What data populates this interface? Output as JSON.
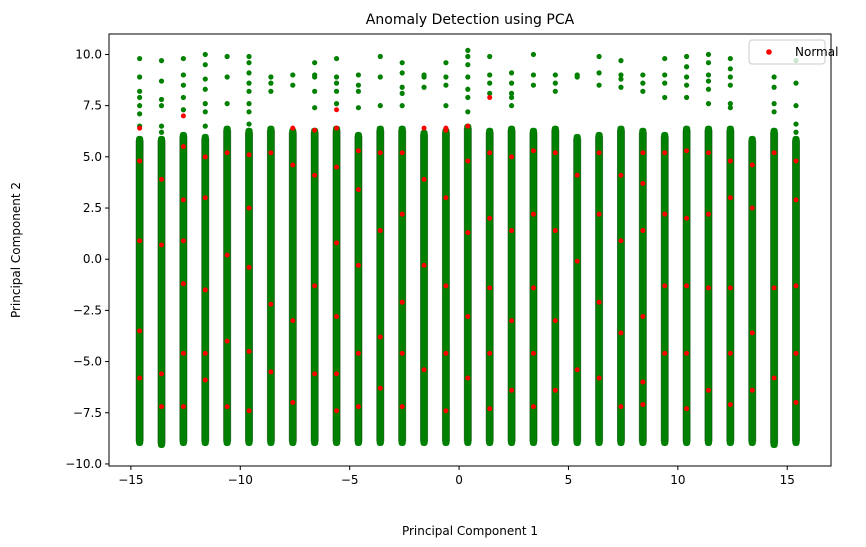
{
  "chart_data": {
    "type": "scatter",
    "title": "Anomaly Detection using PCA",
    "xlabel": "Principal Component 1",
    "ylabel": "Principal Component 2",
    "xlim": [
      -16.0,
      17.0
    ],
    "ylim": [
      -10.1,
      11.0
    ],
    "xticks": [
      -15,
      -10,
      -5,
      0,
      5,
      10,
      15
    ],
    "yticks": [
      -10.0,
      -7.5,
      -5.0,
      -2.5,
      0.0,
      2.5,
      5.0,
      7.5,
      10.0
    ],
    "grid": false,
    "legend": {
      "placement": "top-right",
      "entries": [
        {
          "label": "Normal",
          "color": "#ff0000"
        }
      ]
    },
    "colors": {
      "normal": "#ff0000",
      "anomaly": "#008000"
    },
    "series": [
      {
        "name": "Normal",
        "color": "#ff0000",
        "points": [
          [
            -14.6,
            6.4
          ],
          [
            -14.6,
            4.8
          ],
          [
            -14.6,
            0.9
          ],
          [
            -14.6,
            -3.5
          ],
          [
            -14.6,
            -5.8
          ],
          [
            -13.6,
            3.9
          ],
          [
            -13.6,
            0.7
          ],
          [
            -13.6,
            -5.6
          ],
          [
            -13.6,
            -7.2
          ],
          [
            -12.6,
            7.0
          ],
          [
            -12.6,
            5.5
          ],
          [
            -12.6,
            2.9
          ],
          [
            -12.6,
            0.9
          ],
          [
            -12.6,
            -1.2
          ],
          [
            -12.6,
            -4.6
          ],
          [
            -12.6,
            -7.2
          ],
          [
            -11.6,
            5.0
          ],
          [
            -11.6,
            3.0
          ],
          [
            -11.6,
            -1.5
          ],
          [
            -11.6,
            -4.6
          ],
          [
            -11.6,
            -5.9
          ],
          [
            -10.6,
            5.2
          ],
          [
            -10.6,
            0.2
          ],
          [
            -10.6,
            -4.0
          ],
          [
            -10.6,
            -7.2
          ],
          [
            -9.6,
            5.1
          ],
          [
            -9.6,
            2.5
          ],
          [
            -9.6,
            -0.4
          ],
          [
            -9.6,
            -4.5
          ],
          [
            -9.6,
            -7.4
          ],
          [
            -8.6,
            5.2
          ],
          [
            -8.6,
            -2.2
          ],
          [
            -8.6,
            -5.5
          ],
          [
            -7.6,
            6.4
          ],
          [
            -7.6,
            4.6
          ],
          [
            -7.6,
            -3.0
          ],
          [
            -7.6,
            -7.0
          ],
          [
            -6.6,
            6.3
          ],
          [
            -6.6,
            4.1
          ],
          [
            -6.6,
            -1.3
          ],
          [
            -6.6,
            -5.6
          ],
          [
            -5.6,
            7.3
          ],
          [
            -5.6,
            6.4
          ],
          [
            -5.6,
            4.5
          ],
          [
            -5.6,
            0.8
          ],
          [
            -5.6,
            -2.8
          ],
          [
            -5.6,
            -5.6
          ],
          [
            -5.6,
            -7.4
          ],
          [
            -4.6,
            5.3
          ],
          [
            -4.6,
            3.4
          ],
          [
            -4.6,
            -0.3
          ],
          [
            -4.6,
            -4.6
          ],
          [
            -4.6,
            -7.2
          ],
          [
            -3.6,
            5.2
          ],
          [
            -3.6,
            1.4
          ],
          [
            -3.6,
            -3.8
          ],
          [
            -3.6,
            -6.3
          ],
          [
            -2.6,
            5.2
          ],
          [
            -2.6,
            2.2
          ],
          [
            -2.6,
            -2.1
          ],
          [
            -2.6,
            -4.6
          ],
          [
            -2.6,
            -7.2
          ],
          [
            -1.6,
            6.4
          ],
          [
            -1.6,
            3.9
          ],
          [
            -1.6,
            -0.3
          ],
          [
            -1.6,
            -5.4
          ],
          [
            -0.6,
            6.4
          ],
          [
            -0.6,
            6.3
          ],
          [
            -0.6,
            3.0
          ],
          [
            -0.6,
            -1.3
          ],
          [
            -0.6,
            -4.6
          ],
          [
            -0.6,
            -7.4
          ],
          [
            0.4,
            6.5
          ],
          [
            0.4,
            4.8
          ],
          [
            0.4,
            1.3
          ],
          [
            0.4,
            -2.8
          ],
          [
            0.4,
            -5.8
          ],
          [
            1.4,
            7.9
          ],
          [
            1.4,
            5.2
          ],
          [
            1.4,
            2.0
          ],
          [
            1.4,
            -1.4
          ],
          [
            1.4,
            -4.6
          ],
          [
            1.4,
            -7.3
          ],
          [
            2.4,
            5.0
          ],
          [
            2.4,
            1.4
          ],
          [
            2.4,
            -3.0
          ],
          [
            2.4,
            -6.4
          ],
          [
            3.4,
            5.3
          ],
          [
            3.4,
            2.2
          ],
          [
            3.4,
            -1.4
          ],
          [
            3.4,
            -4.6
          ],
          [
            3.4,
            -7.2
          ],
          [
            4.4,
            5.2
          ],
          [
            4.4,
            1.4
          ],
          [
            4.4,
            -3.0
          ],
          [
            4.4,
            -6.4
          ],
          [
            5.4,
            4.1
          ],
          [
            5.4,
            -0.1
          ],
          [
            5.4,
            -5.4
          ],
          [
            6.4,
            5.2
          ],
          [
            6.4,
            2.2
          ],
          [
            6.4,
            -2.1
          ],
          [
            6.4,
            -5.8
          ],
          [
            7.4,
            4.1
          ],
          [
            7.4,
            0.9
          ],
          [
            7.4,
            -3.6
          ],
          [
            7.4,
            -7.2
          ],
          [
            8.4,
            5.2
          ],
          [
            8.4,
            3.7
          ],
          [
            8.4,
            1.4
          ],
          [
            8.4,
            -2.8
          ],
          [
            8.4,
            -6.0
          ],
          [
            8.4,
            -7.1
          ],
          [
            9.4,
            5.2
          ],
          [
            9.4,
            2.2
          ],
          [
            9.4,
            -1.3
          ],
          [
            9.4,
            -4.6
          ],
          [
            10.4,
            5.3
          ],
          [
            10.4,
            2.0
          ],
          [
            10.4,
            -1.3
          ],
          [
            10.4,
            -4.6
          ],
          [
            10.4,
            -7.3
          ],
          [
            11.4,
            5.2
          ],
          [
            11.4,
            2.2
          ],
          [
            11.4,
            -1.4
          ],
          [
            11.4,
            -6.4
          ],
          [
            12.4,
            4.8
          ],
          [
            12.4,
            3.0
          ],
          [
            12.4,
            -1.4
          ],
          [
            12.4,
            -4.6
          ],
          [
            12.4,
            -7.1
          ],
          [
            13.4,
            4.6
          ],
          [
            13.4,
            2.5
          ],
          [
            13.4,
            -3.6
          ],
          [
            13.4,
            -6.4
          ],
          [
            14.4,
            5.2
          ],
          [
            14.4,
            -1.4
          ],
          [
            14.4,
            -5.8
          ],
          [
            15.4,
            4.8
          ],
          [
            15.4,
            2.9
          ],
          [
            15.4,
            -1.3
          ],
          [
            15.4,
            -4.6
          ],
          [
            15.4,
            -7.0
          ]
        ]
      },
      {
        "color": "#008000",
        "stripes": [
          {
            "x": -14.6,
            "ymin": -9.0,
            "ymax": 5.9,
            "outliers": [
              9.8,
              8.9,
              8.2,
              7.9,
              7.5,
              7.1,
              6.5,
              -8.5,
              -8.8
            ]
          },
          {
            "x": -13.6,
            "ymin": -9.1,
            "ymax": 5.9,
            "outliers": [
              9.7,
              8.7,
              7.8,
              7.5,
              6.5,
              6.2
            ]
          },
          {
            "x": -12.6,
            "ymin": -9.0,
            "ymax": 6.1,
            "outliers": [
              9.8,
              9.0,
              8.5,
              7.9,
              7.3
            ]
          },
          {
            "x": -11.6,
            "ymin": -9.0,
            "ymax": 6.0,
            "outliers": [
              10.0,
              9.5,
              8.8,
              8.3,
              7.6,
              7.2,
              6.5
            ]
          },
          {
            "x": -10.6,
            "ymin": -9.0,
            "ymax": 6.4,
            "outliers": [
              9.9,
              8.9,
              7.6
            ]
          },
          {
            "x": -9.6,
            "ymin": -9.0,
            "ymax": 6.3,
            "outliers": [
              9.9,
              9.6,
              9.1,
              8.6,
              8.2,
              7.6,
              7.2,
              6.6
            ]
          },
          {
            "x": -8.6,
            "ymin": -9.0,
            "ymax": 6.4,
            "outliers": [
              8.9,
              8.6,
              8.2
            ]
          },
          {
            "x": -7.6,
            "ymin": -9.0,
            "ymax": 6.3,
            "outliers": [
              9.0,
              8.5
            ]
          },
          {
            "x": -6.6,
            "ymin": -9.0,
            "ymax": 6.3,
            "outliers": [
              9.6,
              9.0,
              8.9,
              8.2,
              7.4
            ]
          },
          {
            "x": -5.6,
            "ymin": -9.0,
            "ymax": 6.4,
            "outliers": [
              9.8,
              8.9,
              8.6,
              8.2,
              7.6
            ]
          },
          {
            "x": -4.6,
            "ymin": -9.0,
            "ymax": 6.1,
            "outliers": [
              9.0,
              8.5,
              8.2,
              7.4
            ]
          },
          {
            "x": -3.6,
            "ymin": -9.0,
            "ymax": 6.4,
            "outliers": [
              9.9,
              8.9,
              7.5
            ]
          },
          {
            "x": -2.6,
            "ymin": -9.0,
            "ymax": 6.4,
            "outliers": [
              9.6,
              9.1,
              8.4,
              8.1,
              7.5
            ]
          },
          {
            "x": -1.6,
            "ymin": -9.0,
            "ymax": 6.2,
            "outliers": [
              9.0,
              8.9,
              8.4
            ]
          },
          {
            "x": -0.6,
            "ymin": -9.0,
            "ymax": 6.3,
            "outliers": [
              9.6,
              8.9,
              8.5,
              7.5
            ]
          },
          {
            "x": 0.4,
            "ymin": -9.0,
            "ymax": 6.5,
            "outliers": [
              10.2,
              9.9,
              9.5,
              8.9,
              8.3,
              7.9,
              7.2
            ]
          },
          {
            "x": 1.4,
            "ymin": -9.0,
            "ymax": 6.3,
            "outliers": [
              9.9,
              9.0,
              8.6,
              8.1
            ]
          },
          {
            "x": 2.4,
            "ymin": -9.0,
            "ymax": 6.4,
            "outliers": [
              9.1,
              8.6,
              8.1,
              7.9,
              7.5
            ]
          },
          {
            "x": 3.4,
            "ymin": -9.0,
            "ymax": 6.3,
            "outliers": [
              10.0,
              9.0,
              8.5
            ]
          },
          {
            "x": 4.4,
            "ymin": -9.0,
            "ymax": 6.4,
            "outliers": [
              9.0,
              8.6,
              8.2
            ]
          },
          {
            "x": 5.4,
            "ymin": -9.0,
            "ymax": 6.0,
            "outliers": [
              9.0,
              8.9
            ]
          },
          {
            "x": 6.4,
            "ymin": -9.0,
            "ymax": 6.1,
            "outliers": [
              9.9,
              9.1,
              8.5
            ]
          },
          {
            "x": 7.4,
            "ymin": -9.0,
            "ymax": 6.4,
            "outliers": [
              9.7,
              9.0,
              8.8,
              8.4
            ]
          },
          {
            "x": 8.4,
            "ymin": -9.0,
            "ymax": 6.3,
            "outliers": [
              9.0,
              8.6,
              8.2
            ]
          },
          {
            "x": 9.4,
            "ymin": -9.0,
            "ymax": 6.1,
            "outliers": [
              9.8,
              9.0,
              8.6,
              7.9
            ]
          },
          {
            "x": 10.4,
            "ymin": -9.0,
            "ymax": 6.4,
            "outliers": [
              9.9,
              9.4,
              8.9,
              8.5,
              7.9
            ]
          },
          {
            "x": 11.4,
            "ymin": -9.0,
            "ymax": 6.4,
            "outliers": [
              10.0,
              9.6,
              9.0,
              8.7,
              8.3,
              7.6
            ]
          },
          {
            "x": 12.4,
            "ymin": -9.0,
            "ymax": 6.4,
            "outliers": [
              9.8,
              9.3,
              8.9,
              8.5,
              7.6,
              7.4
            ]
          },
          {
            "x": 13.4,
            "ymin": -9.0,
            "ymax": 5.9,
            "outliers": [
              -8.6
            ]
          },
          {
            "x": 14.4,
            "ymin": -9.1,
            "ymax": 6.3,
            "outliers": [
              8.9,
              8.4,
              7.6,
              7.2
            ]
          },
          {
            "x": 15.4,
            "ymin": -9.0,
            "ymax": 5.9,
            "outliers": [
              9.7,
              8.6,
              7.5,
              6.6,
              6.2
            ]
          }
        ]
      }
    ]
  }
}
